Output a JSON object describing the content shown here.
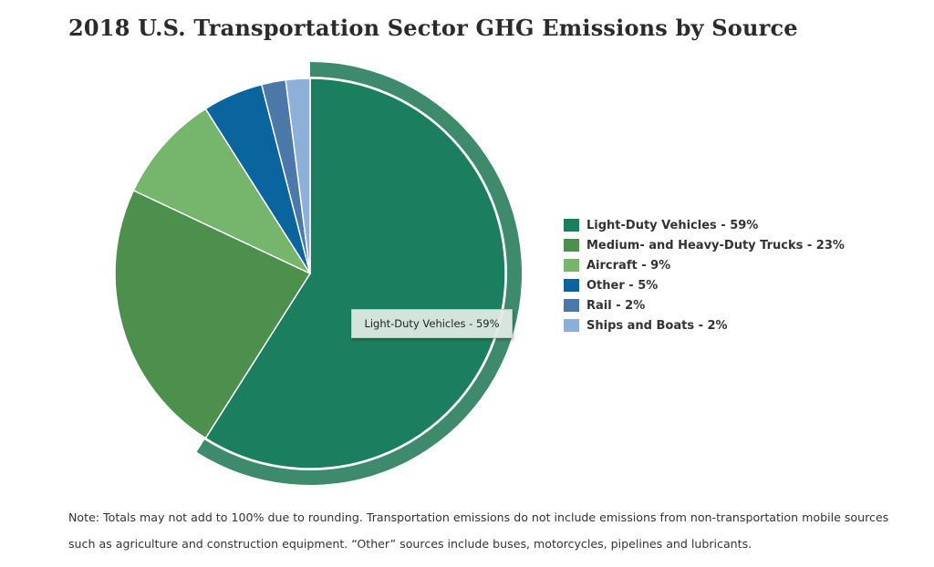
{
  "chart_data": {
    "type": "pie",
    "title": "2018 U.S. Transportation Sector GHG Emissions by Source",
    "slices": [
      {
        "label": "Light-Duty Vehicles - 59%",
        "value": 59,
        "color": "#1b7f5f"
      },
      {
        "label": "Medium- and Heavy-Duty Trucks - 23%",
        "value": 23,
        "color": "#4d8f4c"
      },
      {
        "label": "Aircraft - 9%",
        "value": 9,
        "color": "#76b56c"
      },
      {
        "label": "Other - 5%",
        "value": 5,
        "color": "#0a659f"
      },
      {
        "label": "Rail - 2%",
        "value": 2,
        "color": "#4b77a9"
      },
      {
        "label": "Ships and Boats - 2%",
        "value": 2,
        "color": "#8db0d9"
      }
    ],
    "highlighted": "Light-Duty Vehicles - 59%",
    "highlight_color": "#3d8a6d",
    "legend_position": "right"
  },
  "tooltip": {
    "text": "Light-Duty Vehicles - 59%"
  },
  "note": "Note: Totals may not add to 100% due to rounding. Transportation emissions do not include emissions from non-transportation mobile sources such as agriculture and construction equipment. “Other” sources include buses, motorcycles, pipelines and lubricants."
}
